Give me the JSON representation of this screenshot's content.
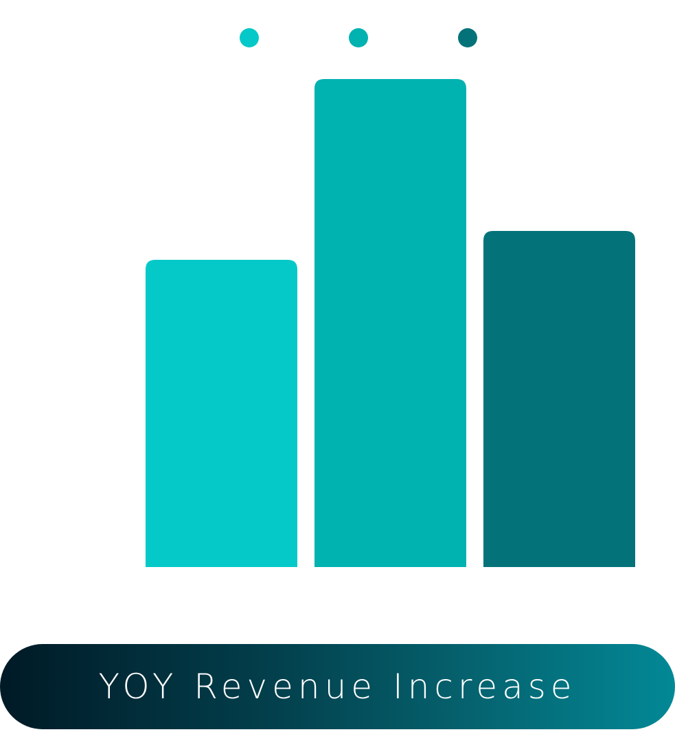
{
  "chart_data": {
    "type": "bar",
    "categories": [
      "",
      "",
      ""
    ],
    "values": [
      447,
      710,
      489
    ],
    "ylim": [
      0,
      710
    ],
    "colors": [
      "#05c9c8",
      "#00b2b0",
      "#047379"
    ],
    "legend": "top-center",
    "grid": false,
    "title": "",
    "xlabel": "",
    "ylabel": ""
  },
  "caption": {
    "text": "YOY Revenue Increase",
    "gradient": [
      "#001a26",
      "#038896"
    ]
  }
}
